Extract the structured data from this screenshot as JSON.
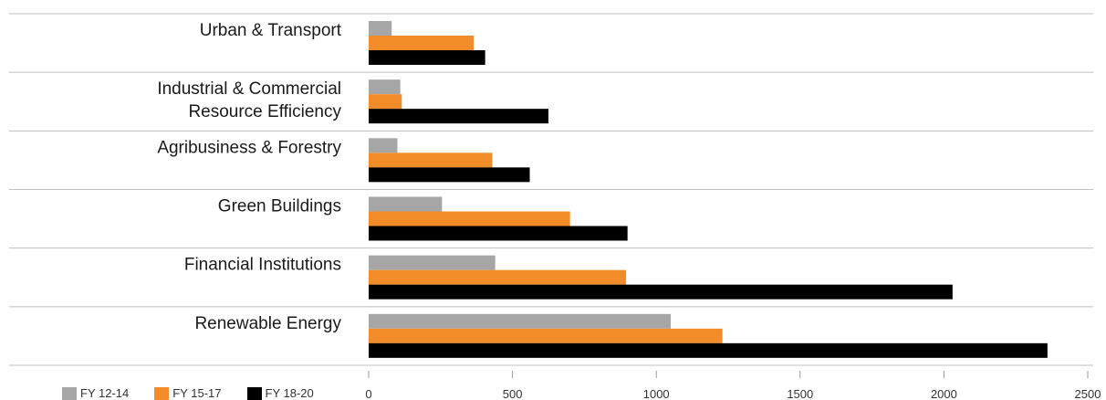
{
  "chart_data": {
    "type": "bar",
    "orientation": "horizontal",
    "categories": [
      [
        "Urban & Transport"
      ],
      [
        "Industrial & Commercial",
        "Resource Efficiency"
      ],
      [
        "Agribusiness & Forestry"
      ],
      [
        "Green Buildings"
      ],
      [
        "Financial Institutions"
      ],
      [
        "Renewable Energy"
      ]
    ],
    "series": [
      {
        "name": "FY 12-14",
        "color": "#a6a6a6",
        "values": [
          80,
          110,
          100,
          255,
          440,
          1050
        ]
      },
      {
        "name": "FY 15-17",
        "color": "#f28c28",
        "values": [
          365,
          115,
          430,
          700,
          895,
          1230
        ]
      },
      {
        "name": "FY 18-20",
        "color": "#000000",
        "values": [
          405,
          625,
          560,
          900,
          2030,
          2360
        ]
      }
    ],
    "xlim": [
      0,
      2500
    ],
    "xticks": [
      0,
      500,
      1000,
      1500,
      2000,
      2500
    ],
    "legend_position": "bottom-left",
    "gridlines": "horizontal separators between categories"
  }
}
